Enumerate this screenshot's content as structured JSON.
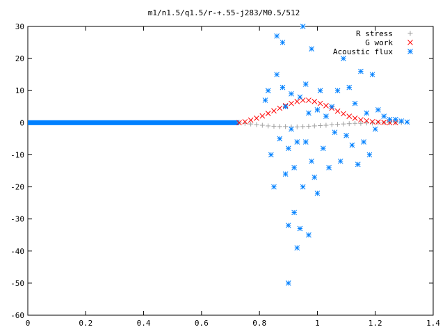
{
  "chart_data": {
    "type": "scatter",
    "title": "m1/n1.5/q1.5/r-+.55-j283/M0.5/512",
    "xlabel": "",
    "ylabel": "",
    "xlim": [
      0,
      1.4
    ],
    "ylim": [
      -60,
      30
    ],
    "x_ticks": [
      0,
      0.2,
      0.4,
      0.6,
      0.8,
      1,
      1.2,
      1.4
    ],
    "x_tick_labels": [
      "0",
      "0.2",
      "0.4",
      "0.6",
      "0.8",
      "1",
      "1.2",
      "1.4"
    ],
    "y_ticks": [
      -60,
      -50,
      -40,
      -30,
      -20,
      -10,
      0,
      10,
      20,
      30
    ],
    "y_tick_labels": [
      "-60",
      "-50",
      "-40",
      "-30",
      "-20",
      "-10",
      "0",
      "10",
      "20",
      "30"
    ],
    "grid": false,
    "legend_position": "top-right",
    "series": [
      {
        "name": "R stress",
        "marker": "plus",
        "color": "#a0a0a0",
        "points": [
          [
            0.73,
            0.1
          ],
          [
            0.75,
            -0.2
          ],
          [
            0.77,
            -0.4
          ],
          [
            0.79,
            -0.6
          ],
          [
            0.81,
            -0.8
          ],
          [
            0.83,
            -1.0
          ],
          [
            0.85,
            -1.1
          ],
          [
            0.87,
            -1.2
          ],
          [
            0.89,
            -1.2
          ],
          [
            0.91,
            -1.3
          ],
          [
            0.93,
            -1.3
          ],
          [
            0.95,
            -1.2
          ],
          [
            0.97,
            -1.1
          ],
          [
            0.99,
            -1.0
          ],
          [
            1.01,
            -0.9
          ],
          [
            1.03,
            -0.8
          ],
          [
            1.05,
            -0.6
          ],
          [
            1.07,
            -0.5
          ],
          [
            1.09,
            -0.4
          ],
          [
            1.11,
            -0.3
          ],
          [
            1.13,
            -0.2
          ],
          [
            1.15,
            -0.2
          ],
          [
            1.17,
            -0.1
          ],
          [
            1.19,
            -0.1
          ],
          [
            1.21,
            0.0
          ],
          [
            1.23,
            0.0
          ],
          [
            1.25,
            0.0
          ],
          [
            1.27,
            0.0
          ],
          [
            1.29,
            0.0
          ]
        ]
      },
      {
        "name": "G work",
        "marker": "cross",
        "color": "#ff0000",
        "points": [
          [
            0.73,
            0.0
          ],
          [
            0.75,
            0.3
          ],
          [
            0.77,
            0.8
          ],
          [
            0.79,
            1.4
          ],
          [
            0.81,
            2.1
          ],
          [
            0.83,
            2.9
          ],
          [
            0.85,
            3.7
          ],
          [
            0.87,
            4.5
          ],
          [
            0.89,
            5.3
          ],
          [
            0.91,
            6.0
          ],
          [
            0.93,
            6.6
          ],
          [
            0.95,
            7.0
          ],
          [
            0.97,
            7.0
          ],
          [
            0.99,
            6.6
          ],
          [
            1.01,
            6.0
          ],
          [
            1.03,
            5.3
          ],
          [
            1.05,
            4.5
          ],
          [
            1.07,
            3.6
          ],
          [
            1.09,
            2.8
          ],
          [
            1.11,
            2.0
          ],
          [
            1.13,
            1.4
          ],
          [
            1.15,
            0.9
          ],
          [
            1.17,
            0.6
          ],
          [
            1.19,
            0.3
          ],
          [
            1.21,
            0.2
          ],
          [
            1.23,
            0.1
          ],
          [
            1.25,
            0.0
          ],
          [
            1.27,
            0.0
          ]
        ]
      },
      {
        "name": "Acoustic flux",
        "marker": "star",
        "color": "#0080ff",
        "points": [
          [
            0.82,
            7
          ],
          [
            0.83,
            10
          ],
          [
            0.84,
            -10
          ],
          [
            0.85,
            -20
          ],
          [
            0.86,
            15
          ],
          [
            0.86,
            27
          ],
          [
            0.87,
            -5
          ],
          [
            0.88,
            25
          ],
          [
            0.88,
            11
          ],
          [
            0.89,
            -16
          ],
          [
            0.89,
            5
          ],
          [
            0.9,
            -32
          ],
          [
            0.9,
            -50
          ],
          [
            0.9,
            -8
          ],
          [
            0.91,
            9
          ],
          [
            0.91,
            -2
          ],
          [
            0.92,
            -28
          ],
          [
            0.92,
            -14
          ],
          [
            0.93,
            -39
          ],
          [
            0.93,
            -6
          ],
          [
            0.94,
            -33
          ],
          [
            0.94,
            8
          ],
          [
            0.95,
            30
          ],
          [
            0.95,
            -20
          ],
          [
            0.96,
            -6
          ],
          [
            0.96,
            12
          ],
          [
            0.97,
            -35
          ],
          [
            0.97,
            3
          ],
          [
            0.98,
            -12
          ],
          [
            0.98,
            23
          ],
          [
            0.99,
            -17
          ],
          [
            1.0,
            4
          ],
          [
            1.0,
            -22
          ],
          [
            1.01,
            10
          ],
          [
            1.02,
            -8
          ],
          [
            1.03,
            2
          ],
          [
            1.04,
            -14
          ],
          [
            1.05,
            5
          ],
          [
            1.06,
            -3
          ],
          [
            1.07,
            10
          ],
          [
            1.08,
            -12
          ],
          [
            1.09,
            20
          ],
          [
            1.1,
            -4
          ],
          [
            1.11,
            11
          ],
          [
            1.12,
            -7
          ],
          [
            1.13,
            6
          ],
          [
            1.14,
            -13
          ],
          [
            1.15,
            16
          ],
          [
            1.16,
            -6
          ],
          [
            1.17,
            3
          ],
          [
            1.18,
            -10
          ],
          [
            1.19,
            15
          ],
          [
            1.2,
            -2
          ],
          [
            1.21,
            4
          ],
          [
            1.23,
            2
          ],
          [
            1.25,
            1
          ],
          [
            1.27,
            1
          ],
          [
            1.29,
            0.5
          ],
          [
            1.31,
            0.2
          ]
        ]
      }
    ],
    "baseline_series_range": [
      0,
      0.73
    ]
  }
}
